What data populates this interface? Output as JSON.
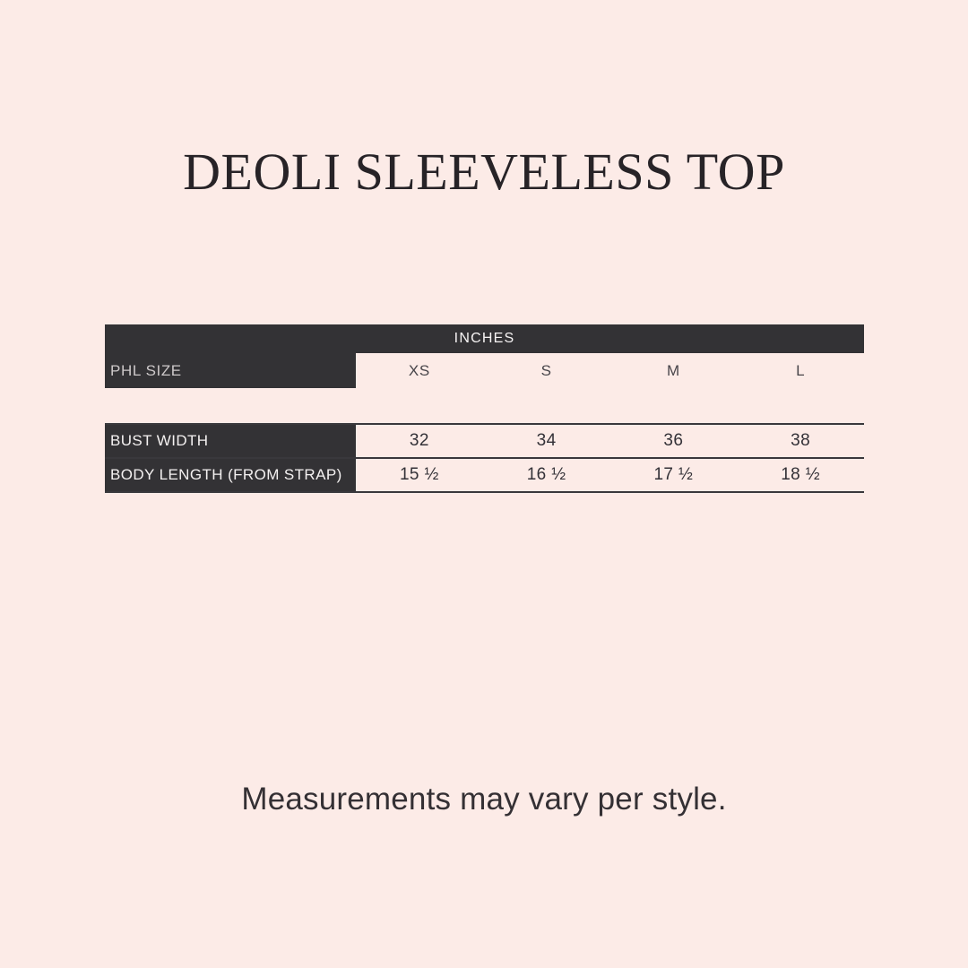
{
  "title": "DEOLI SLEEVELESS TOP",
  "footnote": "Measurements may vary per style.",
  "colors": {
    "background": "#fcebe7",
    "panel_dark": "#333235",
    "rule_line": "#39383c",
    "text_light": "#f4f1f1",
    "text_dark": "#333137"
  },
  "table": {
    "unit_header": "INCHES",
    "corner_label": "PHL SIZE",
    "sizes": [
      "XS",
      "S",
      "M",
      "L"
    ],
    "rows": [
      {
        "label": "BUST WIDTH",
        "values": [
          "32",
          "34",
          "36",
          "38"
        ]
      },
      {
        "label": "BODY LENGTH (FROM STRAP)",
        "values": [
          "15 ½",
          "16 ½",
          "17 ½",
          "18 ½"
        ]
      }
    ]
  },
  "chart_data": {
    "type": "table",
    "title": "DEOLI SLEEVELESS TOP",
    "unit": "INCHES",
    "columns": [
      "PHL SIZE",
      "XS",
      "S",
      "M",
      "L"
    ],
    "rows": [
      [
        "BUST WIDTH",
        "32",
        "34",
        "36",
        "38"
      ],
      [
        "BODY LENGTH (FROM STRAP)",
        "15 ½",
        "16 ½",
        "17 ½",
        "18 ½"
      ]
    ],
    "note": "Measurements may vary per style."
  }
}
